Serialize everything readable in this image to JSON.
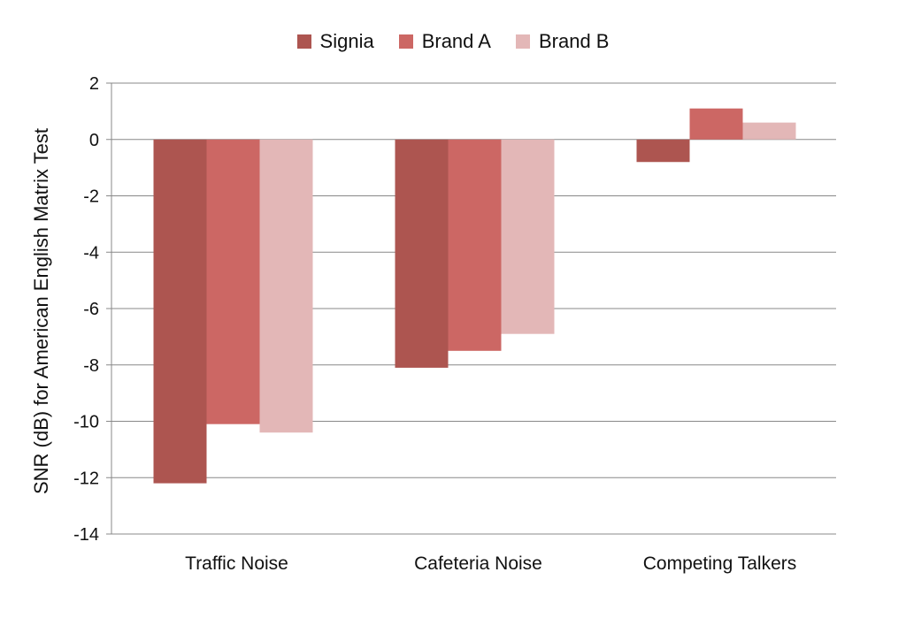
{
  "chart_data": {
    "type": "bar",
    "categories": [
      "Traffic Noise",
      "Cafeteria Noise",
      "Competing Talkers"
    ],
    "series": [
      {
        "name": "Signia",
        "values": [
          -12.2,
          -8.1,
          -0.8
        ],
        "color": "#ad5550"
      },
      {
        "name": "Brand A",
        "values": [
          -10.1,
          -7.5,
          1.1
        ],
        "color": "#cc6764"
      },
      {
        "name": "Brand B",
        "values": [
          -10.4,
          -6.9,
          0.6
        ],
        "color": "#e3b7b7"
      }
    ],
    "title": "",
    "xlabel": "",
    "ylabel": "SNR (dB) for American English Matrix Test",
    "ylim": [
      -14,
      2
    ],
    "yticks": [
      2,
      0,
      -2,
      -4,
      -6,
      -8,
      -10,
      -12,
      -14
    ],
    "grid": true,
    "legend_position": "top-center"
  }
}
